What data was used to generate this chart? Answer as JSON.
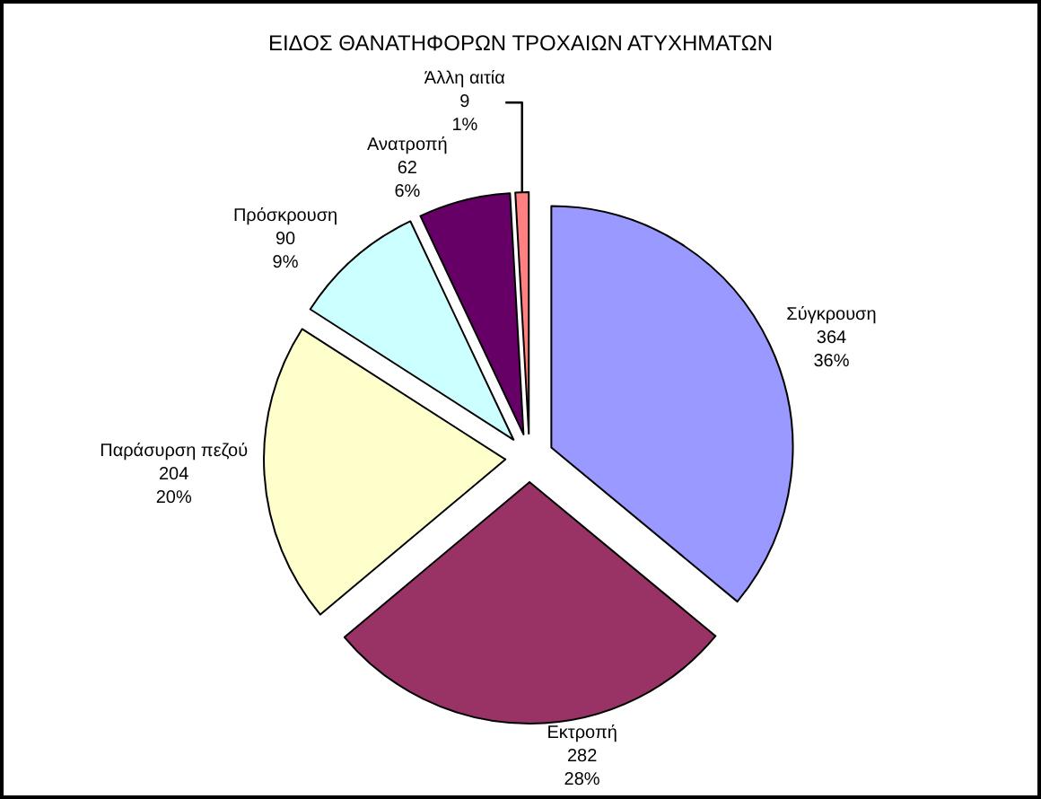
{
  "chart_data": {
    "type": "pie",
    "title": "ΕΙΔΟΣ ΘΑΝΑΤΗΦΟΡΩΝ ΤΡΟΧΑΙΩΝ ΑΤΥΧΗΜΑΤΩΝ",
    "categories": [
      "Σύγκρουση",
      "Εκτροπή",
      "Παράσυρση πεζού",
      "Πρόσκρουση",
      "Ανατροπή",
      "Άλλη αιτία"
    ],
    "values": [
      364,
      282,
      204,
      90,
      62,
      9
    ],
    "value_labels": [
      "364\n36%",
      "282\n28%",
      "204\n20%",
      "90\n9%",
      "62\n6%",
      "9\n1%"
    ],
    "colors": [
      "#9999ff",
      "#993366",
      "#ffffcc",
      "#ccffff",
      "#660066",
      "#ff8080"
    ],
    "legend": false
  }
}
